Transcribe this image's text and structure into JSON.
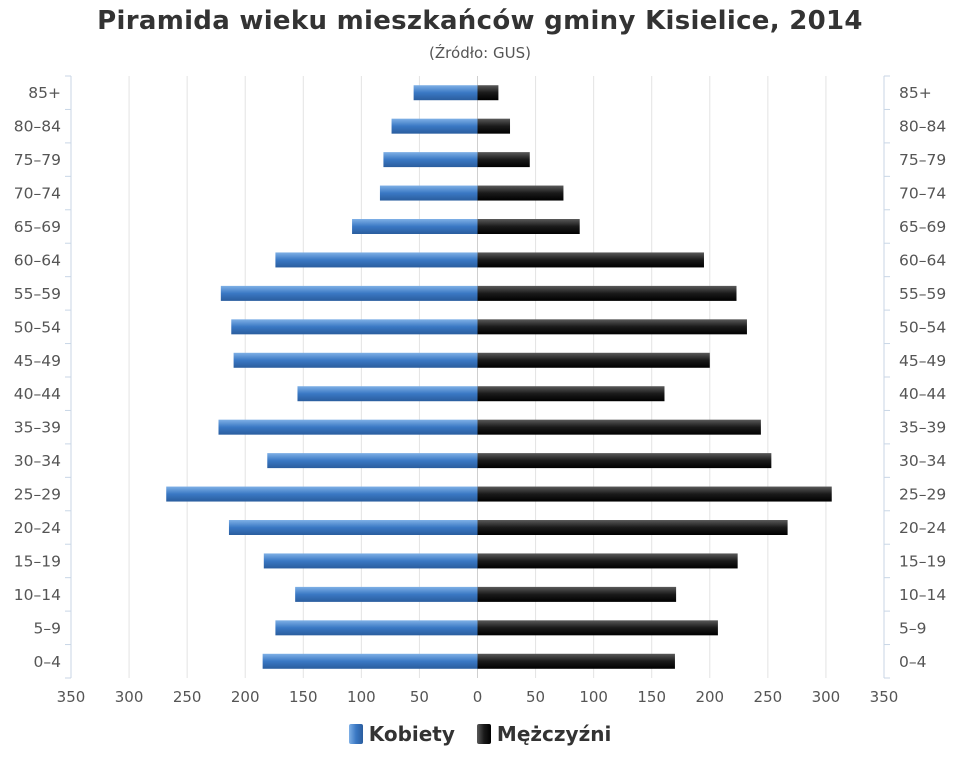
{
  "chart_data": {
    "type": "bar",
    "title": "Piramida wieku mieszkańców gminy Kisielice, 2014",
    "subtitle": "(Źródło: GUS)",
    "orientation": "horizontal",
    "categories": [
      "85+",
      "80-84",
      "75-79",
      "70-74",
      "65-69",
      "60-64",
      "55-59",
      "50-54",
      "45-49",
      "40-44",
      "35-39",
      "30-34",
      "25-29",
      "20-24",
      "15-19",
      "10-14",
      "5-9",
      "0-4"
    ],
    "series": [
      {
        "name": "Kobiety",
        "values": [
          55,
          74,
          81,
          84,
          108,
          174,
          221,
          212,
          210,
          155,
          223,
          181,
          268,
          214,
          184,
          157,
          174,
          185
        ],
        "color": "#3a78c4"
      },
      {
        "name": "Mężczyźni",
        "values": [
          18,
          28,
          45,
          74,
          88,
          195,
          223,
          232,
          200,
          161,
          244,
          253,
          305,
          267,
          224,
          171,
          207,
          170
        ],
        "color": "#1a1a1a"
      }
    ],
    "xlim": [
      -350,
      350
    ],
    "xticks": [
      -350,
      -300,
      -250,
      -200,
      -150,
      -100,
      -50,
      0,
      50,
      100,
      150,
      200,
      250,
      300,
      350
    ],
    "xtick_labels": [
      "350",
      "300",
      "250",
      "200",
      "150",
      "100",
      "50",
      "0",
      "50",
      "100",
      "150",
      "200",
      "250",
      "300",
      "350"
    ],
    "grid": true,
    "legend": "bottom-center"
  }
}
